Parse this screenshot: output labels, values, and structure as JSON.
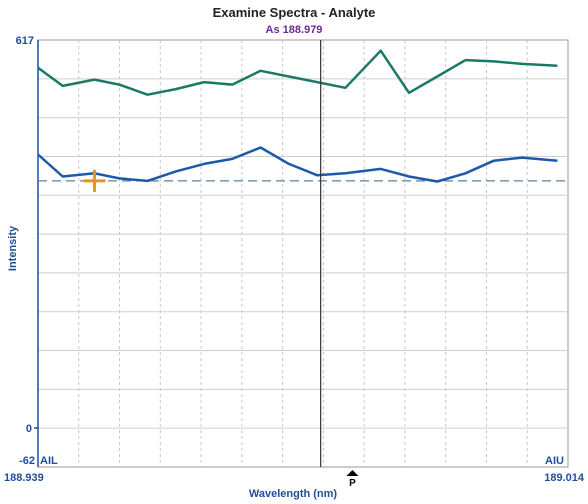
{
  "chart_data": {
    "type": "line",
    "title": "Examine Spectra - Analyte",
    "subtitle": "As 188.979",
    "xlabel": "Wavelength (nm)",
    "ylabel": "Intensity",
    "xlim": [
      188.939,
      189.014
    ],
    "ylim": [
      -62,
      617
    ],
    "x_tick_labels": [
      "188.939",
      "189.014"
    ],
    "y_tick_labels": [
      "617",
      "0",
      "-62"
    ],
    "corner_labels": {
      "left": "AIL",
      "right": "AIU"
    },
    "grid": true,
    "series": [
      {
        "name": "",
        "color": "#1a7a66",
        "x": [
          188.939,
          188.9425,
          188.947,
          188.9505,
          188.9545,
          188.9585,
          188.9625,
          188.9665,
          188.9705,
          188.9745,
          188.9785,
          188.9825,
          188.9875,
          188.9915,
          188.9955,
          188.9995,
          189.0035,
          189.0075,
          189.0125
        ],
        "y": [
          573,
          544,
          554,
          546,
          530,
          539,
          550,
          546,
          568,
          559,
          550,
          541,
          600,
          533,
          559,
          585,
          583,
          579,
          576
        ]
      },
      {
        "name": "",
        "color": "#1a5aa8",
        "x": [
          188.939,
          188.9425,
          188.947,
          188.9505,
          188.9545,
          188.9585,
          188.9625,
          188.9665,
          188.9705,
          188.9745,
          188.9785,
          188.9825,
          188.9875,
          188.9915,
          188.9955,
          188.9995,
          189.0035,
          189.0075,
          189.0125
        ],
        "y": [
          435,
          400,
          405,
          397,
          393,
          408,
          420,
          428,
          446,
          420,
          402,
          405,
          412,
          400,
          392,
          405,
          425,
          430,
          425
        ]
      }
    ],
    "baseline": {
      "y": 393,
      "color": "#5a82a8"
    },
    "cursor": {
      "x": 188.979
    },
    "cross_marker": {
      "x": 188.947,
      "y": 393,
      "color": "#f09020"
    },
    "peak_marker": {
      "x": 188.9835,
      "label": "P"
    }
  }
}
